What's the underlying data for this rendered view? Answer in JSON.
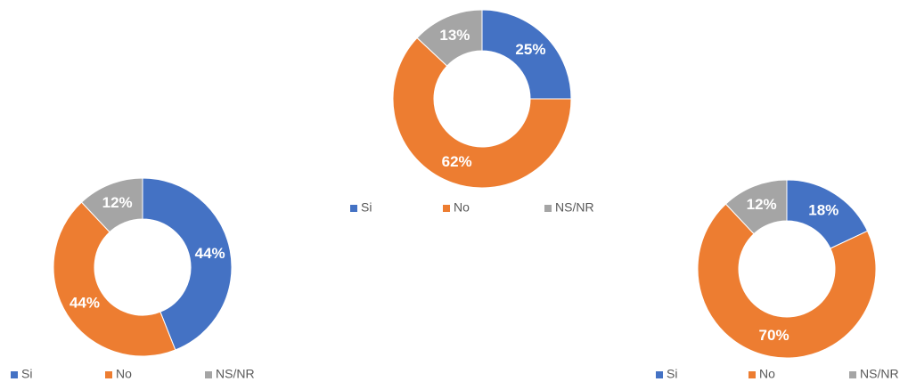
{
  "chart_data": [
    {
      "type": "donut",
      "categories": [
        "Si",
        "No",
        "NS/NR"
      ],
      "values": [
        25,
        62,
        13
      ],
      "value_labels": [
        "25%",
        "62%",
        "13%"
      ],
      "colors": [
        "#4472c4",
        "#ed7d31",
        "#a5a5a5"
      ]
    },
    {
      "type": "donut",
      "categories": [
        "Si",
        "No",
        "NS/NR"
      ],
      "values": [
        44,
        44,
        12
      ],
      "value_labels": [
        "44%",
        "44%",
        "12%"
      ],
      "colors": [
        "#4472c4",
        "#ed7d31",
        "#a5a5a5"
      ]
    },
    {
      "type": "donut",
      "categories": [
        "Si",
        "No",
        "NS/NR"
      ],
      "values": [
        18,
        70,
        12
      ],
      "value_labels": [
        "18%",
        "70%",
        "12%"
      ],
      "colors": [
        "#4472c4",
        "#ed7d31",
        "#a5a5a5"
      ]
    }
  ]
}
